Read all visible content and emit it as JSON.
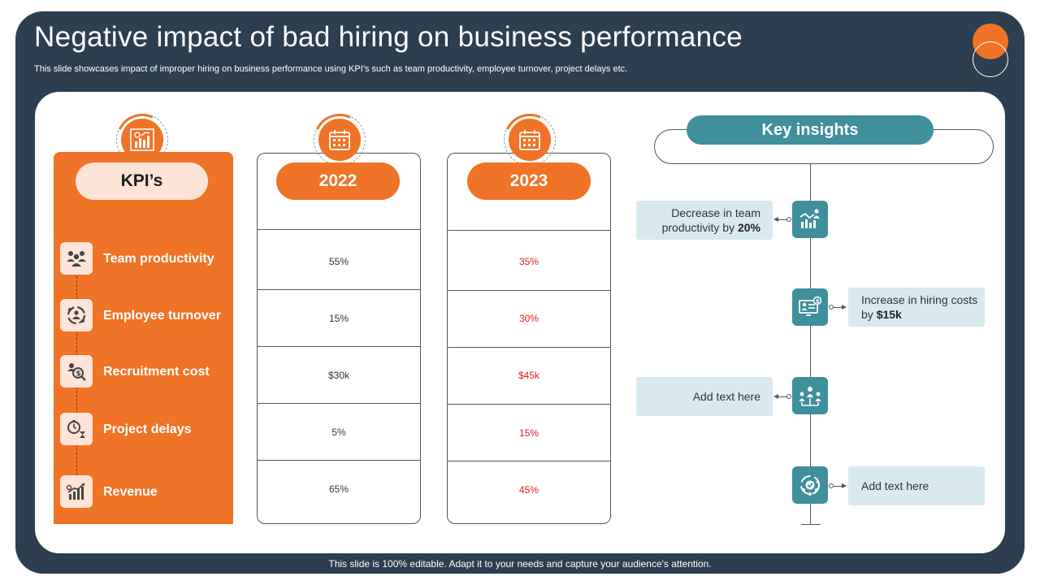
{
  "slide": {
    "title": "Negative impact of bad hiring on business performance",
    "subtitle": "This slide showcases impact of improper hiring on business performance using KPI’s such as team productivity, employee turnover, project delays etc.",
    "footer": "This slide is 100% editable. Adapt it to your needs and capture your audience's attention."
  },
  "colors": {
    "navy": "#2c3e50",
    "orange": "#f07427",
    "teal": "#3f8f9c",
    "peach": "#fde4d6",
    "light_teal": "#d8eaee",
    "red": "#e02020"
  },
  "kpis": {
    "header": "KPI’s",
    "items": [
      {
        "label": "Team productivity",
        "icon": "team-icon"
      },
      {
        "label": "Employee turnover",
        "icon": "turnover-icon"
      },
      {
        "label": "Recruitment cost",
        "icon": "cost-search-icon"
      },
      {
        "label": "Project delays",
        "icon": "stopwatch-hourglass-icon"
      },
      {
        "label": "Revenue",
        "icon": "revenue-chart-icon"
      }
    ]
  },
  "years": [
    {
      "label": "2022",
      "values": [
        "55%",
        "15%",
        "$30k",
        "5%",
        "65%"
      ]
    },
    {
      "label": "2023",
      "values": [
        "35%",
        "30%",
        "$45k",
        "15%",
        "45%"
      ]
    }
  ],
  "insights": {
    "title": "Key insights",
    "items": [
      {
        "text": "Decrease in team productivity by ",
        "bold": "20%",
        "icon": "productivity-chart-icon"
      },
      {
        "text": "Increase in hiring costs by ",
        "bold": "$15k",
        "icon": "hiring-cost-icon"
      },
      {
        "text": "Add text here",
        "bold": "",
        "icon": "people-network-icon"
      },
      {
        "text": "Add text here",
        "bold": "",
        "icon": "team-cycle-icon"
      }
    ]
  }
}
